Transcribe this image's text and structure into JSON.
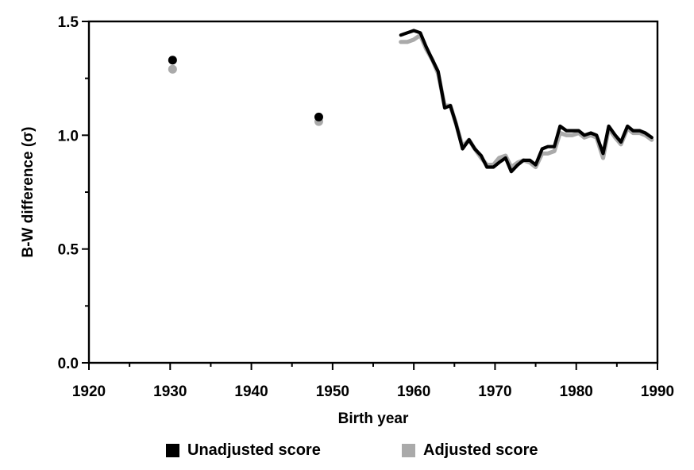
{
  "chart_data": {
    "type": "line",
    "title": "",
    "xlabel": "Birth year",
    "ylabel": "B-W difference (σ)",
    "xlim": [
      1920,
      1990
    ],
    "ylim": [
      0.0,
      1.5
    ],
    "x_ticks": [
      "1920",
      "1930",
      "1940",
      "1950",
      "1960",
      "1970",
      "1980",
      "1990"
    ],
    "y_ticks": [
      "0.0",
      "0.5",
      "1.0",
      "1.5"
    ],
    "grid": false,
    "legend_position": "bottom",
    "series": [
      {
        "name": "Unadjusted score",
        "color": "#000000",
        "points": [
          [
            1930.3,
            1.33
          ],
          [
            1948.3,
            1.08
          ]
        ],
        "line": [
          [
            1958.4,
            1.44
          ],
          [
            1959.2,
            1.45
          ],
          [
            1960.0,
            1.46
          ],
          [
            1960.8,
            1.45
          ],
          [
            1961.5,
            1.39
          ],
          [
            1962.3,
            1.33
          ],
          [
            1963.0,
            1.28
          ],
          [
            1963.8,
            1.12
          ],
          [
            1964.5,
            1.13
          ],
          [
            1965.2,
            1.05
          ],
          [
            1966.0,
            0.94
          ],
          [
            1966.8,
            0.98
          ],
          [
            1967.5,
            0.94
          ],
          [
            1968.3,
            0.91
          ],
          [
            1969.0,
            0.86
          ],
          [
            1969.8,
            0.86
          ],
          [
            1970.5,
            0.88
          ],
          [
            1971.3,
            0.9
          ],
          [
            1972.0,
            0.84
          ],
          [
            1972.8,
            0.87
          ],
          [
            1973.5,
            0.89
          ],
          [
            1974.3,
            0.89
          ],
          [
            1975.0,
            0.87
          ],
          [
            1975.8,
            0.94
          ],
          [
            1976.5,
            0.95
          ],
          [
            1977.3,
            0.95
          ],
          [
            1978.0,
            1.04
          ],
          [
            1978.8,
            1.02
          ],
          [
            1979.5,
            1.02
          ],
          [
            1980.3,
            1.02
          ],
          [
            1981.0,
            1.0
          ],
          [
            1981.8,
            1.01
          ],
          [
            1982.5,
            1.0
          ],
          [
            1983.3,
            0.92
          ],
          [
            1984.0,
            1.04
          ],
          [
            1984.8,
            1.0
          ],
          [
            1985.5,
            0.97
          ],
          [
            1986.3,
            1.04
          ],
          [
            1987.0,
            1.02
          ],
          [
            1987.8,
            1.02
          ],
          [
            1988.5,
            1.01
          ],
          [
            1989.3,
            0.99
          ]
        ]
      },
      {
        "name": "Adjusted score",
        "color": "#aaaaaa",
        "points": [
          [
            1930.3,
            1.29
          ],
          [
            1948.3,
            1.06
          ]
        ],
        "line": [
          [
            1958.4,
            1.41
          ],
          [
            1959.2,
            1.41
          ],
          [
            1960.0,
            1.42
          ],
          [
            1960.8,
            1.44
          ],
          [
            1961.5,
            1.38
          ],
          [
            1962.3,
            1.33
          ],
          [
            1963.0,
            1.27
          ],
          [
            1963.8,
            1.13
          ],
          [
            1964.5,
            1.13
          ],
          [
            1965.2,
            1.05
          ],
          [
            1966.0,
            0.95
          ],
          [
            1966.8,
            0.98
          ],
          [
            1967.5,
            0.94
          ],
          [
            1968.3,
            0.9
          ],
          [
            1969.0,
            0.87
          ],
          [
            1969.8,
            0.87
          ],
          [
            1970.5,
            0.9
          ],
          [
            1971.3,
            0.91
          ],
          [
            1972.0,
            0.86
          ],
          [
            1972.8,
            0.88
          ],
          [
            1973.5,
            0.89
          ],
          [
            1974.3,
            0.88
          ],
          [
            1975.0,
            0.86
          ],
          [
            1975.8,
            0.92
          ],
          [
            1976.5,
            0.92
          ],
          [
            1977.3,
            0.93
          ],
          [
            1978.0,
            1.01
          ],
          [
            1978.8,
            1.0
          ],
          [
            1979.5,
            1.0
          ],
          [
            1980.3,
            1.01
          ],
          [
            1981.0,
            0.99
          ],
          [
            1981.8,
            1.0
          ],
          [
            1982.5,
            0.99
          ],
          [
            1983.3,
            0.9
          ],
          [
            1984.0,
            1.03
          ],
          [
            1984.8,
            0.99
          ],
          [
            1985.5,
            0.96
          ],
          [
            1986.3,
            1.03
          ],
          [
            1987.0,
            1.01
          ],
          [
            1987.8,
            1.01
          ],
          [
            1988.5,
            1.0
          ],
          [
            1989.3,
            0.98
          ]
        ]
      }
    ]
  }
}
